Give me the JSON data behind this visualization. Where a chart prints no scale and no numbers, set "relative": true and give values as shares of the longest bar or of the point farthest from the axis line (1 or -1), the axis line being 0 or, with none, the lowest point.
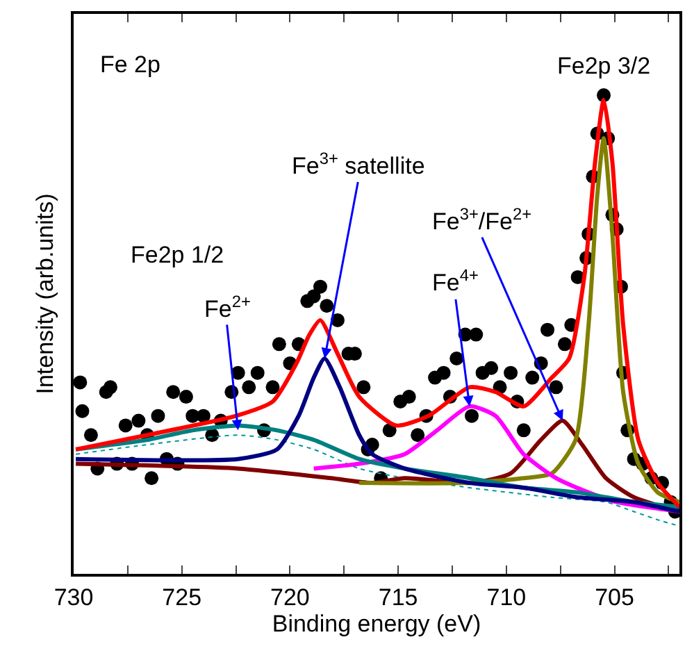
{
  "chart_data": {
    "type": "line",
    "relative": true,
    "xlabel": "Binding energy (eV)",
    "ylabel": "Intensity (arb.units)",
    "xlim": [
      730,
      702
    ],
    "xticks": [
      730,
      {
        "value": 727.5,
        "label": null
      },
      725,
      {
        "value": 722.5,
        "label": null
      },
      720,
      {
        "value": 717.5,
        "label": null
      },
      715,
      {
        "value": 712.5,
        "label": null
      },
      710,
      {
        "value": 707.5,
        "label": null
      },
      705,
      {
        "value": 702.5,
        "label": null
      }
    ],
    "legend": false,
    "annotations": [
      "Fe 2p",
      "Fe2p 1/2",
      {
        "text": "Fe2p 3/2",
        "x": 705.5,
        "y": 1.0
      },
      {
        "text": "Fe$^{2+}$",
        "x": 722.4,
        "y": 0.3
      },
      {
        "text": "Fe$^{3+}$ satellite",
        "x": 718.4,
        "y": 0.45
      },
      {
        "text": "Fe$^{4+}$",
        "x": 711.7,
        "y": 0.35
      },
      {
        "text": "Fe$^{3+}$/Fe$^{2+}$",
        "x": 707.4,
        "y": 0.32
      }
    ],
    "series": [
      {
        "type": "scatter",
        "marker": "circle",
        "color": "#000000",
        "x": [
          729.7,
          729.6,
          729.2,
          728.9,
          728.5,
          728.3,
          728.0,
          727.6,
          727.3,
          727.0,
          726.6,
          726.4,
          726.1,
          725.7,
          725.4,
          725.2,
          724.8,
          724.5,
          724.0,
          723.6,
          723.2,
          722.7,
          722.4,
          721.9,
          721.5,
          721.2,
          720.8,
          720.5,
          720.0,
          719.6,
          719.2,
          718.9,
          718.6,
          718.3,
          717.8,
          717.3,
          717.0,
          716.6,
          716.4,
          716.2,
          715.8,
          715.4,
          714.9,
          714.5,
          714.1,
          713.7,
          713.3,
          712.9,
          712.6,
          712.3,
          711.9,
          711.6,
          711.4,
          711.1,
          710.7,
          710.3,
          709.8,
          709.5,
          709.2,
          708.8,
          708.4,
          708.1,
          707.7,
          707.3,
          707.0,
          706.7,
          706.3,
          706.2,
          706.0,
          705.8,
          705.5,
          705.3,
          705.1,
          704.9,
          704.7,
          704.6,
          704.4,
          704.1,
          703.7,
          703.3,
          702.8,
          702.4,
          702.2
        ],
        "values": [
          0.4,
          0.34,
          0.29,
          0.22,
          0.38,
          0.39,
          0.23,
          0.31,
          0.23,
          0.32,
          0.29,
          0.2,
          0.33,
          0.24,
          0.38,
          0.23,
          0.37,
          0.33,
          0.33,
          0.29,
          0.32,
          0.38,
          0.42,
          0.39,
          0.42,
          0.3,
          0.39,
          0.48,
          0.44,
          0.48,
          0.57,
          0.58,
          0.6,
          0.56,
          0.53,
          0.46,
          0.46,
          0.39,
          0.26,
          0.27,
          0.2,
          0.3,
          0.36,
          0.37,
          0.29,
          0.33,
          0.41,
          0.42,
          0.37,
          0.45,
          0.5,
          0.33,
          0.5,
          0.42,
          0.43,
          0.39,
          0.42,
          0.36,
          0.3,
          0.41,
          0.44,
          0.51,
          0.39,
          0.48,
          0.52,
          0.62,
          0.66,
          0.71,
          0.83,
          0.92,
          1.0,
          0.91,
          0.75,
          0.72,
          0.6,
          0.42,
          0.3,
          0.24,
          0.23,
          0.2,
          0.19,
          0.15,
          0.13
        ]
      },
      {
        "marker": "none",
        "line_style": "dotted",
        "color": "#009999",
        "x": [
          729.9,
          726.6,
          722.4,
          720.6,
          718.9,
          716.8,
          714.7,
          711.7,
          707.9,
          705.4,
          704.1,
          702.8,
          702.0
        ],
        "values": [
          0.25,
          0.27,
          0.29,
          0.28,
          0.26,
          0.22,
          0.2,
          0.18,
          0.16,
          0.15,
          0.13,
          0.11,
          0.1
        ]
      },
      {
        "marker": "none",
        "line_style": "solid",
        "color": "#800000",
        "x": [
          729.9,
          722.4,
          718.1,
          716.2,
          714.7,
          711.6,
          709.8,
          708.4,
          707.4,
          706.5,
          705.4,
          704.1,
          702.0
        ],
        "values": [
          0.23,
          0.22,
          0.2,
          0.19,
          0.2,
          0.19,
          0.21,
          0.28,
          0.32,
          0.27,
          0.2,
          0.16,
          0.13
        ]
      },
      {
        "marker": "none",
        "line_style": "solid",
        "color": "#808000",
        "x": [
          716.8,
          712.0,
          709.2,
          707.9,
          706.8,
          706.2,
          705.8,
          705.5,
          705.1,
          704.6,
          703.9,
          703.0,
          702.0
        ],
        "values": [
          0.19,
          0.19,
          0.2,
          0.21,
          0.28,
          0.52,
          0.79,
          0.91,
          0.71,
          0.38,
          0.23,
          0.17,
          0.15
        ]
      },
      {
        "marker": "none",
        "line_style": "solid",
        "color": "#ff00ff",
        "x": [
          718.9,
          716.8,
          714.7,
          713.2,
          711.7,
          710.5,
          709.2,
          707.7,
          706.2,
          704.9,
          702.0
        ],
        "values": [
          0.22,
          0.23,
          0.25,
          0.3,
          0.35,
          0.33,
          0.25,
          0.2,
          0.17,
          0.15,
          0.13
        ]
      },
      {
        "marker": "none",
        "line_style": "solid",
        "color": "#008080",
        "x": [
          729.9,
          726.6,
          724.5,
          722.4,
          720.6,
          718.9,
          716.8,
          714.7,
          711.7,
          709.2,
          706.7,
          704.1,
          702.0
        ],
        "values": [
          0.26,
          0.28,
          0.3,
          0.31,
          0.3,
          0.28,
          0.24,
          0.22,
          0.2,
          0.18,
          0.17,
          0.15,
          0.14
        ]
      },
      {
        "marker": "none",
        "line_style": "solid",
        "color": "#000080",
        "x": [
          729.9,
          722.4,
          720.6,
          719.6,
          718.9,
          718.4,
          717.7,
          716.8,
          716.2,
          714.7,
          711.7,
          709.2,
          706.7,
          704.1,
          702.0
        ],
        "values": [
          0.24,
          0.24,
          0.26,
          0.33,
          0.41,
          0.45,
          0.39,
          0.29,
          0.25,
          0.22,
          0.19,
          0.18,
          0.16,
          0.15,
          0.13
        ]
      },
      {
        "marker": "none",
        "line_style": "solid",
        "color": "#ff0000",
        "x": [
          729.9,
          726.6,
          722.5,
          720.8,
          719.7,
          719.1,
          718.6,
          717.8,
          716.8,
          715.1,
          713.6,
          711.7,
          710.5,
          709.2,
          707.9,
          707.1,
          706.4,
          705.9,
          705.5,
          705.1,
          704.6,
          703.9,
          703.0,
          702.0
        ],
        "values": [
          0.26,
          0.29,
          0.33,
          0.36,
          0.44,
          0.5,
          0.53,
          0.46,
          0.37,
          0.31,
          0.33,
          0.39,
          0.38,
          0.35,
          0.41,
          0.45,
          0.62,
          0.86,
          0.99,
          0.86,
          0.52,
          0.28,
          0.19,
          0.14
        ]
      }
    ]
  }
}
